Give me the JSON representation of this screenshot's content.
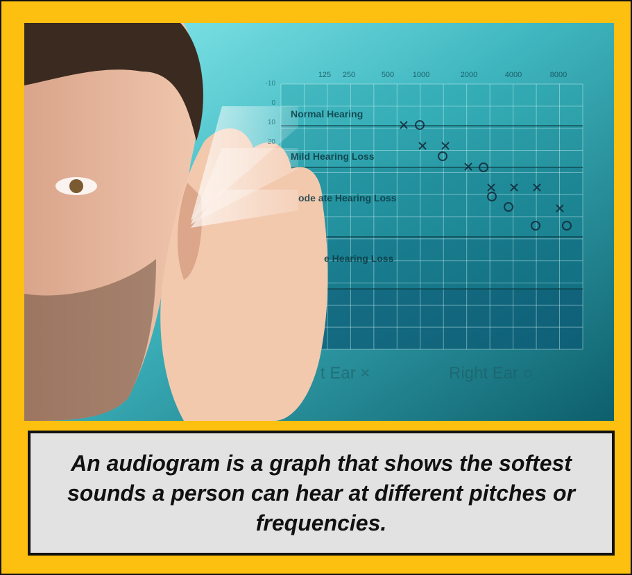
{
  "photo": {
    "frequencies": [
      "125",
      "250",
      "500",
      "1000",
      "2000",
      "4000",
      "8000"
    ],
    "db_labels": [
      "-10",
      "0",
      "10",
      "20"
    ],
    "bands": [
      "Normal Hearing",
      "Mild Hearing Loss",
      "ode ate Hearing Loss",
      "e Hearing Loss"
    ],
    "legend": [
      "t Ear ×",
      "Right Ear ○"
    ]
  },
  "caption": "An audiogram is a graph that shows the softest sounds a person can hear at different pitches or frequencies."
}
